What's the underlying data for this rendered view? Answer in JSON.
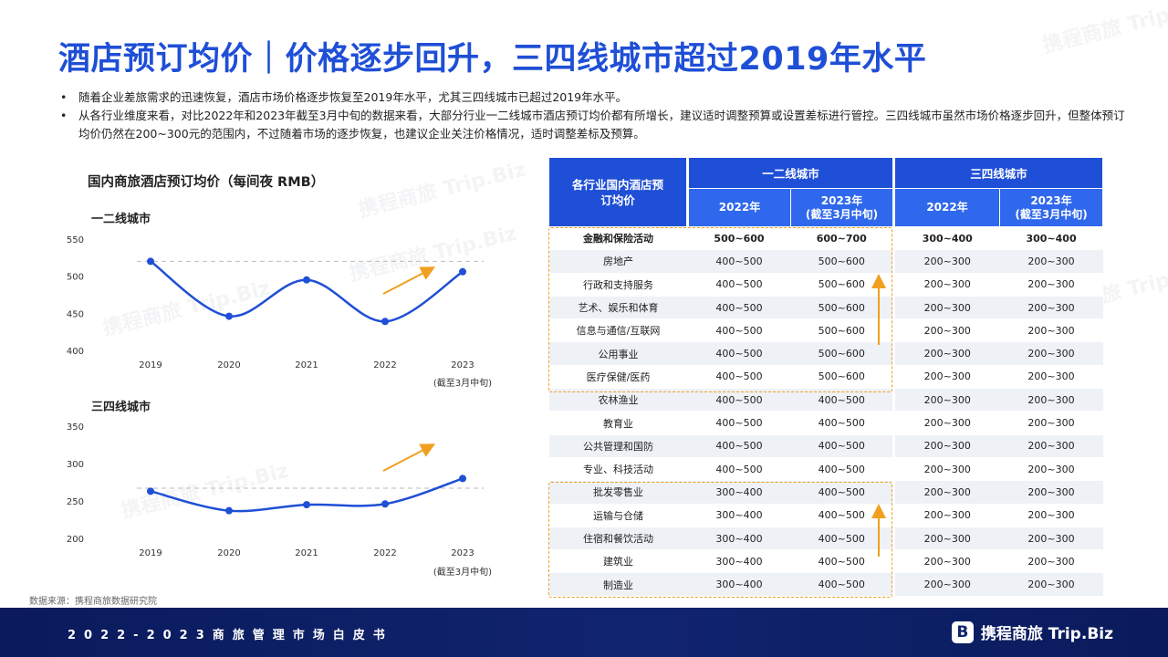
{
  "title": "酒店预订均价｜价格逐步回升，三四线城市超过2019年水平",
  "bullets": [
    "随着企业差旅需求的迅速恢复，酒店市场价格逐步恢复至2019年水平，尤其三四线城市已超过2019年水平。",
    "从各行业维度来看，对比2022年和2023年截至3月中旬的数据来看，大部分行业一二线城市酒店预订均价都有所增长，建议适时调整预算或设置差标进行管控。三四线城市虽然市场价格逐步回升，但整体预订均价仍然在200~300元的范围内，不过随着市场的逐步恢复，也建议企业关注价格情况，适时调整差标及预算。"
  ],
  "bullet_symbol": "•",
  "chart_title": "国内商旅酒店预订均价（每间夜 RMB）",
  "chart_data": [
    {
      "type": "line",
      "subtitle": "一二线城市",
      "categories": [
        "2019",
        "2020",
        "2021",
        "2022",
        "2023"
      ],
      "category_notes": [
        "",
        "",
        "",
        "",
        "(截至3月中旬)"
      ],
      "values": [
        520,
        446,
        495,
        439,
        506
      ],
      "reference_value": 520,
      "ylim": [
        400,
        550
      ],
      "yticks": [
        "400",
        "450",
        "500",
        "550"
      ],
      "line_color": "#1f4fd6",
      "arrow_color": "#f0a020"
    },
    {
      "type": "line",
      "subtitle": "三四线城市",
      "categories": [
        "2019",
        "2020",
        "2021",
        "2022",
        "2023"
      ],
      "category_notes": [
        "",
        "",
        "",
        "",
        "(截至3月中旬)"
      ],
      "values": [
        263,
        237,
        245,
        246,
        280
      ],
      "reference_value": 267,
      "ylim": [
        200,
        350
      ],
      "yticks": [
        "200",
        "250",
        "300",
        "350"
      ],
      "line_color": "#1f4fd6",
      "arrow_color": "#f0a020"
    },
    {
      "type": "table",
      "header": {
        "corner": "各行业国内酒店预订均价",
        "group1": "一二线城市",
        "group2": "三四线城市",
        "col_2022": "2022年",
        "col_2023": "2023年",
        "col_2023_note": "(截至3月中旬)"
      },
      "rows": [
        {
          "industry": "金融和保险活动",
          "c1": "500~600",
          "c2": "600~700",
          "c3": "300~400",
          "c4": "300~400"
        },
        {
          "industry": "房地产",
          "c1": "400~500",
          "c2": "500~600",
          "c3": "200~300",
          "c4": "200~300"
        },
        {
          "industry": "行政和支持服务",
          "c1": "400~500",
          "c2": "500~600",
          "c3": "200~300",
          "c4": "200~300"
        },
        {
          "industry": "艺术、娱乐和体育",
          "c1": "400~500",
          "c2": "500~600",
          "c3": "200~300",
          "c4": "200~300"
        },
        {
          "industry": "信息与通信/互联网",
          "c1": "400~500",
          "c2": "500~600",
          "c3": "200~300",
          "c4": "200~300"
        },
        {
          "industry": "公用事业",
          "c1": "400~500",
          "c2": "500~600",
          "c3": "200~300",
          "c4": "200~300"
        },
        {
          "industry": "医疗保健/医药",
          "c1": "400~500",
          "c2": "500~600",
          "c3": "200~300",
          "c4": "200~300"
        },
        {
          "industry": "农林渔业",
          "c1": "400~500",
          "c2": "400~500",
          "c3": "200~300",
          "c4": "200~300"
        },
        {
          "industry": "教育业",
          "c1": "400~500",
          "c2": "400~500",
          "c3": "200~300",
          "c4": "200~300"
        },
        {
          "industry": "公共管理和国防",
          "c1": "400~500",
          "c2": "400~500",
          "c3": "200~300",
          "c4": "200~300"
        },
        {
          "industry": "专业、科技活动",
          "c1": "400~500",
          "c2": "400~500",
          "c3": "200~300",
          "c4": "200~300"
        },
        {
          "industry": "批发零售业",
          "c1": "300~400",
          "c2": "400~500",
          "c3": "200~300",
          "c4": "200~300"
        },
        {
          "industry": "运输与仓储",
          "c1": "300~400",
          "c2": "400~500",
          "c3": "200~300",
          "c4": "200~300"
        },
        {
          "industry": "住宿和餐饮活动",
          "c1": "300~400",
          "c2": "400~500",
          "c3": "200~300",
          "c4": "200~300"
        },
        {
          "industry": "建筑业",
          "c1": "300~400",
          "c2": "400~500",
          "c3": "200~300",
          "c4": "200~300"
        },
        {
          "industry": "制造业",
          "c1": "300~400",
          "c2": "400~500",
          "c3": "200~300",
          "c4": "200~300"
        }
      ]
    }
  ],
  "source": "数据来源：携程商旅数据研究院",
  "footer": {
    "left": "2022-2023商旅管理市场白皮书",
    "logo_badge": "B",
    "logo_text": "携程商旅 Trip.Biz"
  },
  "watermark": "携程商旅 Trip.Biz",
  "colors": {
    "brand": "#1f4fd6",
    "accent": "#f0a020",
    "footer_bg": "#10246e"
  }
}
